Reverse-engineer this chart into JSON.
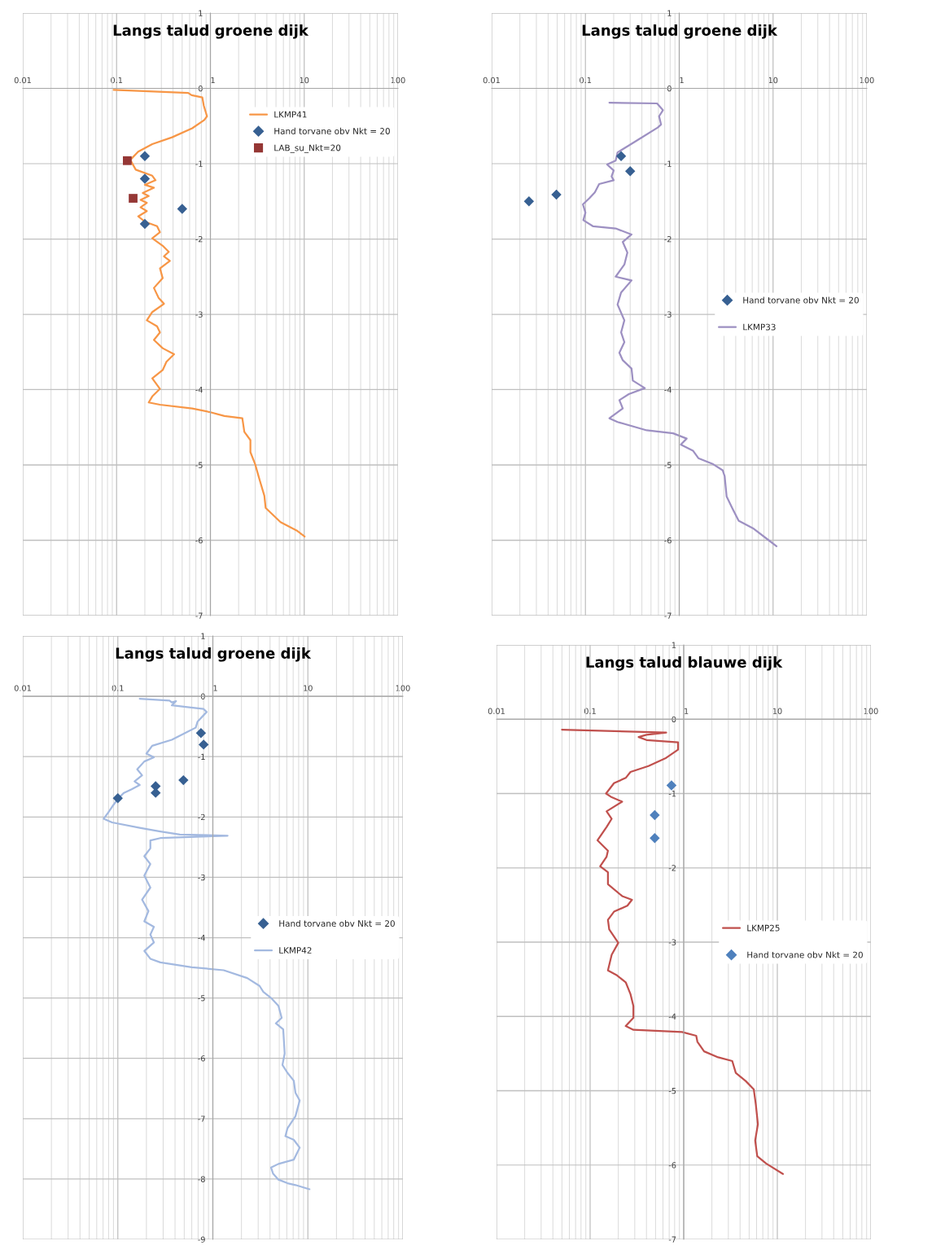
{
  "chart_data": [
    {
      "type": "line",
      "title": "Langs talud groene dijk",
      "log": "x",
      "grid": true,
      "legend": "top right",
      "xlim": [
        0.01,
        100
      ],
      "xticks": [
        0.01,
        0.1,
        1,
        10,
        100
      ],
      "ylim": [
        -7,
        1
      ],
      "yticks": [
        1,
        0,
        -1,
        -2,
        -3,
        -4,
        -5,
        -6,
        -7
      ],
      "series": [
        {
          "name": "LKMP41",
          "color": "#f79646",
          "x": [
            0.093,
            0.58,
            0.63,
            0.82,
            0.85,
            0.92,
            0.86,
            0.64,
            0.39,
            0.24,
            0.17,
            0.14,
            0.16,
            0.24,
            0.26,
            0.2,
            0.25,
            0.19,
            0.22,
            0.18,
            0.21,
            0.18,
            0.21,
            0.17,
            0.2,
            0.27,
            0.29,
            0.24,
            0.31,
            0.36,
            0.32,
            0.37,
            0.29,
            0.31,
            0.25,
            0.28,
            0.32,
            0.24,
            0.21,
            0.27,
            0.29,
            0.25,
            0.31,
            0.41,
            0.34,
            0.31,
            0.24,
            0.29,
            0.24,
            0.22,
            0.29,
            0.64,
            1.0,
            1.41,
            2.19,
            2.3,
            2.67,
            2.67,
            3.0,
            3.35,
            3.76,
            3.88,
            5.6,
            8.3,
            10.1
          ],
          "values": [
            -0.02,
            -0.06,
            -0.09,
            -0.12,
            -0.23,
            -0.37,
            -0.42,
            -0.53,
            -0.65,
            -0.74,
            -0.84,
            -0.95,
            -1.08,
            -1.16,
            -1.22,
            -1.28,
            -1.32,
            -1.39,
            -1.43,
            -1.48,
            -1.52,
            -1.58,
            -1.63,
            -1.7,
            -1.77,
            -1.83,
            -1.91,
            -1.99,
            -2.09,
            -2.17,
            -2.23,
            -2.29,
            -2.39,
            -2.52,
            -2.65,
            -2.78,
            -2.86,
            -2.97,
            -3.08,
            -3.16,
            -3.24,
            -3.34,
            -3.45,
            -3.53,
            -3.63,
            -3.74,
            -3.85,
            -3.99,
            -4.09,
            -4.17,
            -4.2,
            -4.25,
            -4.3,
            -4.35,
            -4.38,
            -4.56,
            -4.67,
            -4.83,
            -4.99,
            -5.2,
            -5.41,
            -5.57,
            -5.76,
            -5.87,
            -5.95
          ]
        },
        {
          "name": "Hand torvane obv Nkt = 20",
          "type": "scatter",
          "marker": "diamond",
          "color": "#376092",
          "x": [
            0.2,
            0.2,
            0.5,
            0.2
          ],
          "values": [
            -0.9,
            -1.2,
            -1.6,
            -1.8
          ]
        },
        {
          "name": "LAB_su_Nkt=20",
          "type": "scatter",
          "marker": "square",
          "color": "#953735",
          "x": [
            0.13,
            0.15
          ],
          "values": [
            -0.96,
            -1.46
          ]
        }
      ]
    },
    {
      "type": "line",
      "title": "Langs talud groene dijk",
      "log": "x",
      "grid": true,
      "legend": "right",
      "xlim": [
        0.01,
        100
      ],
      "xticks": [
        0.01,
        0.1,
        1,
        10,
        100
      ],
      "ylim": [
        -7,
        1
      ],
      "yticks": [
        1,
        0,
        -1,
        -2,
        -3,
        -4,
        -5,
        -6,
        -7
      ],
      "series": [
        {
          "name": "Hand torvane obv Nkt = 20",
          "type": "scatter",
          "marker": "diamond",
          "color": "#376092",
          "x": [
            0.24,
            0.3,
            0.049,
            0.025
          ],
          "values": [
            -0.9,
            -1.1,
            -1.41,
            -1.5
          ]
        },
        {
          "name": "LKMP33",
          "color": "#9d90c2",
          "x": [
            0.18,
            0.58,
            0.67,
            0.61,
            0.64,
            0.59,
            0.39,
            0.28,
            0.22,
            0.21,
            0.17,
            0.2,
            0.19,
            0.2,
            0.14,
            0.126,
            0.11,
            0.094,
            0.1,
            0.095,
            0.12,
            0.21,
            0.31,
            0.25,
            0.28,
            0.26,
            0.21,
            0.31,
            0.24,
            0.22,
            0.26,
            0.24,
            0.26,
            0.23,
            0.25,
            0.31,
            0.32,
            0.43,
            0.29,
            0.23,
            0.25,
            0.18,
            0.22,
            0.45,
            0.86,
            1.2,
            1.04,
            1.4,
            1.6,
            2.3,
            2.9,
            3.05,
            3.2,
            3.7,
            4.3,
            6.1,
            9.0,
            10.9
          ],
          "values": [
            -0.19,
            -0.2,
            -0.29,
            -0.37,
            -0.48,
            -0.52,
            -0.66,
            -0.77,
            -0.85,
            -0.96,
            -1.01,
            -1.09,
            -1.17,
            -1.22,
            -1.27,
            -1.38,
            -1.46,
            -1.54,
            -1.65,
            -1.75,
            -1.83,
            -1.86,
            -1.94,
            -2.04,
            -2.18,
            -2.34,
            -2.5,
            -2.55,
            -2.71,
            -2.87,
            -3.08,
            -3.24,
            -3.37,
            -3.51,
            -3.61,
            -3.72,
            -3.88,
            -3.98,
            -4.06,
            -4.14,
            -4.25,
            -4.38,
            -4.43,
            -4.54,
            -4.58,
            -4.65,
            -4.73,
            -4.81,
            -4.91,
            -4.99,
            -5.07,
            -5.15,
            -5.42,
            -5.58,
            -5.74,
            -5.84,
            -6.0,
            -6.08
          ]
        }
      ]
    },
    {
      "type": "line",
      "title": "Langs talud groene dijk",
      "log": "x",
      "grid": true,
      "legend": "right",
      "xlim": [
        0.01,
        100
      ],
      "xticks": [
        0.01,
        0.1,
        1,
        10,
        100
      ],
      "ylim": [
        -9,
        1
      ],
      "yticks": [
        1,
        0,
        -1,
        -2,
        -3,
        -4,
        -5,
        -6,
        -7,
        -8,
        -9
      ],
      "series": [
        {
          "name": "Hand torvane obv Nkt = 20",
          "type": "scatter",
          "marker": "diamond",
          "color": "#376092",
          "x": [
            0.75,
            0.8,
            0.49,
            0.25,
            0.25,
            0.1
          ],
          "values": [
            -0.61,
            -0.8,
            -1.39,
            -1.49,
            -1.6,
            -1.69
          ]
        },
        {
          "name": "LKMP42",
          "color": "#a3b9e0",
          "x": [
            0.17,
            0.35,
            0.37,
            0.41,
            0.37,
            0.42,
            0.54,
            0.8,
            0.86,
            0.69,
            0.66,
            0.54,
            0.37,
            0.23,
            0.2,
            0.24,
            0.19,
            0.16,
            0.18,
            0.15,
            0.17,
            0.14,
            0.116,
            0.1,
            0.09,
            0.079,
            0.071,
            0.087,
            0.17,
            0.28,
            0.45,
            1.43,
            0.28,
            0.22,
            0.22,
            0.19,
            0.22,
            0.19,
            0.22,
            0.18,
            0.21,
            0.19,
            0.24,
            0.22,
            0.24,
            0.19,
            0.22,
            0.28,
            0.6,
            1.3,
            2.3,
            3.1,
            3.4,
            4.1,
            4.9,
            5.3,
            4.6,
            5.5,
            5.7,
            5.4,
            6.1,
            7.1,
            7.4,
            8.2,
            7.4,
            6.1,
            5.8,
            7.1,
            8.2,
            7.1,
            4.9,
            4.1,
            4.3,
            4.9,
            6.1,
            7.4,
            10.4
          ],
          "values": [
            -0.04,
            -0.07,
            -0.1,
            -0.08,
            -0.15,
            -0.16,
            -0.18,
            -0.21,
            -0.26,
            -0.42,
            -0.52,
            -0.59,
            -0.72,
            -0.82,
            -0.95,
            -1.01,
            -1.08,
            -1.21,
            -1.31,
            -1.41,
            -1.47,
            -1.54,
            -1.6,
            -1.7,
            -1.8,
            -1.93,
            -2.03,
            -2.09,
            -2.18,
            -2.24,
            -2.29,
            -2.31,
            -2.35,
            -2.39,
            -2.52,
            -2.65,
            -2.78,
            -2.97,
            -3.17,
            -3.37,
            -3.56,
            -3.73,
            -3.82,
            -3.95,
            -4.08,
            -4.22,
            -4.35,
            -4.41,
            -4.49,
            -4.54,
            -4.67,
            -4.8,
            -4.9,
            -5.0,
            -5.13,
            -5.33,
            -5.42,
            -5.52,
            -5.92,
            -6.11,
            -6.24,
            -6.37,
            -6.57,
            -6.7,
            -6.96,
            -7.16,
            -7.29,
            -7.35,
            -7.48,
            -7.68,
            -7.75,
            -7.81,
            -7.91,
            -8.01,
            -8.07,
            -8.1,
            -8.17
          ]
        }
      ]
    },
    {
      "type": "line",
      "title": "Langs talud blauwe dijk",
      "log": "x",
      "grid": true,
      "legend": "right",
      "xlim": [
        0.01,
        100
      ],
      "xticks": [
        0.01,
        0.1,
        1,
        10,
        100
      ],
      "ylim": [
        -7,
        1
      ],
      "yticks": [
        1,
        0,
        -1,
        -2,
        -3,
        -4,
        -5,
        -6,
        -7
      ],
      "series": [
        {
          "name": "LKMP25",
          "color": "#c0504d",
          "x": [
            0.05,
            0.65,
            0.4,
            0.33,
            0.4,
            0.87,
            0.87,
            0.65,
            0.42,
            0.27,
            0.24,
            0.18,
            0.148,
            0.17,
            0.22,
            0.15,
            0.17,
            0.15,
            0.12,
            0.155,
            0.15,
            0.128,
            0.155,
            0.155,
            0.22,
            0.28,
            0.25,
            0.18,
            0.155,
            0.16,
            0.2,
            0.17,
            0.155,
            0.19,
            0.24,
            0.27,
            0.29,
            0.29,
            0.24,
            0.29,
            0.96,
            1.36,
            1.4,
            1.65,
            2.33,
            3.3,
            3.6,
            4.6,
            5.6,
            5.9,
            6.2,
            5.8,
            6.1,
            7.6,
            11.5
          ],
          "values": [
            -0.14,
            -0.18,
            -0.21,
            -0.24,
            -0.28,
            -0.31,
            -0.41,
            -0.52,
            -0.63,
            -0.71,
            -0.79,
            -0.86,
            -1.0,
            -1.05,
            -1.11,
            -1.24,
            -1.34,
            -1.45,
            -1.63,
            -1.77,
            -1.85,
            -1.98,
            -2.06,
            -2.22,
            -2.38,
            -2.43,
            -2.51,
            -2.59,
            -2.7,
            -2.83,
            -3.01,
            -3.17,
            -3.38,
            -3.44,
            -3.54,
            -3.7,
            -3.86,
            -4.02,
            -4.13,
            -4.18,
            -4.21,
            -4.26,
            -4.34,
            -4.47,
            -4.55,
            -4.6,
            -4.76,
            -4.87,
            -4.98,
            -5.19,
            -5.45,
            -5.67,
            -5.88,
            -5.98,
            -6.12
          ]
        },
        {
          "name": "Hand torvane obv Nkt = 20",
          "type": "scatter",
          "marker": "diamond",
          "color": "#4f81bd",
          "x": [
            0.74,
            0.49,
            0.49
          ],
          "values": [
            -0.89,
            -1.29,
            -1.6
          ]
        }
      ]
    }
  ]
}
